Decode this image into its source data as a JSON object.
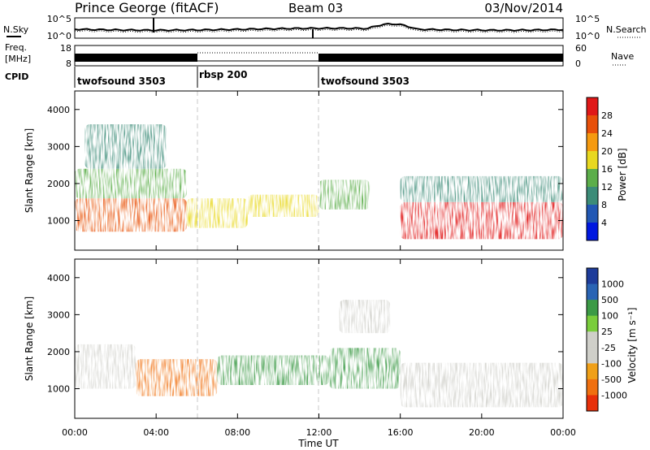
{
  "header": {
    "station": "Prince George (fitACF)",
    "beam": "Beam 03",
    "date": "03/Nov/2014"
  },
  "left_labels": {
    "nsky": "N.Sky",
    "freq_line1": "Freq.",
    "freq_line2": "[MHz]",
    "cpid": "CPID"
  },
  "right_labels": {
    "nsearch": "N.Search",
    "nave": "Nave"
  },
  "noise_panel": {
    "left_ticks": [
      "10^5",
      "10^0"
    ],
    "right_ticks": [
      "10^5",
      "10^0"
    ]
  },
  "freq_panel": {
    "left_ticks": [
      "18",
      "8"
    ],
    "right_ticks": [
      "60",
      "0"
    ]
  },
  "cpid_segments": [
    {
      "label": "twofsound 3503",
      "start_h": 0,
      "end_h": 6
    },
    {
      "label": "rbsp 200",
      "start_h": 6,
      "end_h": 12
    },
    {
      "label": "twofsound 3503",
      "start_h": 12,
      "end_h": 24
    }
  ],
  "colorbars": {
    "power": {
      "label": "Power [dB]",
      "ticks": [
        "28",
        "24",
        "20",
        "16",
        "12",
        "8",
        "4"
      ],
      "colors": [
        "#0018e0",
        "#2258b4",
        "#3c8c78",
        "#5cae4a",
        "#e8d820",
        "#f59a10",
        "#e8500a",
        "#e01818"
      ]
    },
    "velocity": {
      "label": "Velocity [m s⁻¹]",
      "ticks": [
        "1000",
        "500",
        "100",
        "25",
        "-25",
        "-100",
        "-500",
        "-1000"
      ],
      "colors": [
        "#1e3c9a",
        "#2a64b4",
        "#3c9a46",
        "#7acd3c",
        "#cfcfc9",
        "#cfcfc9",
        "#f0a018",
        "#f07010",
        "#e8300a"
      ]
    }
  },
  "chart_data": [
    {
      "type": "heatmap",
      "title": "Power",
      "xlabel": "",
      "ylabel": "Slant Range [km]",
      "xlim": [
        0,
        24
      ],
      "ylim": [
        200,
        4500
      ],
      "x_ticks": [
        "00:00",
        "04:00",
        "08:00",
        "12:00",
        "16:00",
        "20:00",
        "00:00"
      ],
      "y_ticks": [
        "1000",
        "2000",
        "3000",
        "4000"
      ],
      "clim": [
        0,
        30
      ],
      "regions": [
        {
          "x": [
            0.0,
            5.5
          ],
          "y": [
            700,
            1600
          ],
          "value": 24
        },
        {
          "x": [
            0.0,
            5.5
          ],
          "y": [
            1600,
            2400
          ],
          "value": 12
        },
        {
          "x": [
            0.5,
            4.5
          ],
          "y": [
            2400,
            3600
          ],
          "value": 10
        },
        {
          "x": [
            5.5,
            8.5
          ],
          "y": [
            800,
            1600
          ],
          "value": 18
        },
        {
          "x": [
            8.5,
            12.0
          ],
          "y": [
            1100,
            1700
          ],
          "value": 16
        },
        {
          "x": [
            12.0,
            14.5
          ],
          "y": [
            1300,
            2100
          ],
          "value": 14
        },
        {
          "x": [
            16.0,
            24.0
          ],
          "y": [
            500,
            1500
          ],
          "value": 27
        },
        {
          "x": [
            16.0,
            24.0
          ],
          "y": [
            1500,
            2200
          ],
          "value": 8
        }
      ]
    },
    {
      "type": "heatmap",
      "title": "Velocity",
      "xlabel": "Time UT",
      "ylabel": "Slant Range [km]",
      "xlim": [
        0,
        24
      ],
      "ylim": [
        200,
        4500
      ],
      "x_ticks": [
        "00:00",
        "04:00",
        "08:00",
        "12:00",
        "16:00",
        "20:00",
        "00:00"
      ],
      "y_ticks": [
        "1000",
        "2000",
        "3000",
        "4000"
      ],
      "clim": [
        -1000,
        1000
      ],
      "regions": [
        {
          "x": [
            0.0,
            3.0
          ],
          "y": [
            1000,
            2200
          ],
          "value": 0
        },
        {
          "x": [
            3.0,
            7.0
          ],
          "y": [
            800,
            1800
          ],
          "value": -400
        },
        {
          "x": [
            7.0,
            12.5
          ],
          "y": [
            1100,
            1900
          ],
          "value": 250
        },
        {
          "x": [
            12.5,
            16.0
          ],
          "y": [
            1000,
            2100
          ],
          "value": 150
        },
        {
          "x": [
            16.0,
            24.0
          ],
          "y": [
            500,
            1700
          ],
          "value": 0
        },
        {
          "x": [
            13.0,
            15.5
          ],
          "y": [
            2500,
            3400
          ],
          "value": 0
        }
      ]
    }
  ]
}
